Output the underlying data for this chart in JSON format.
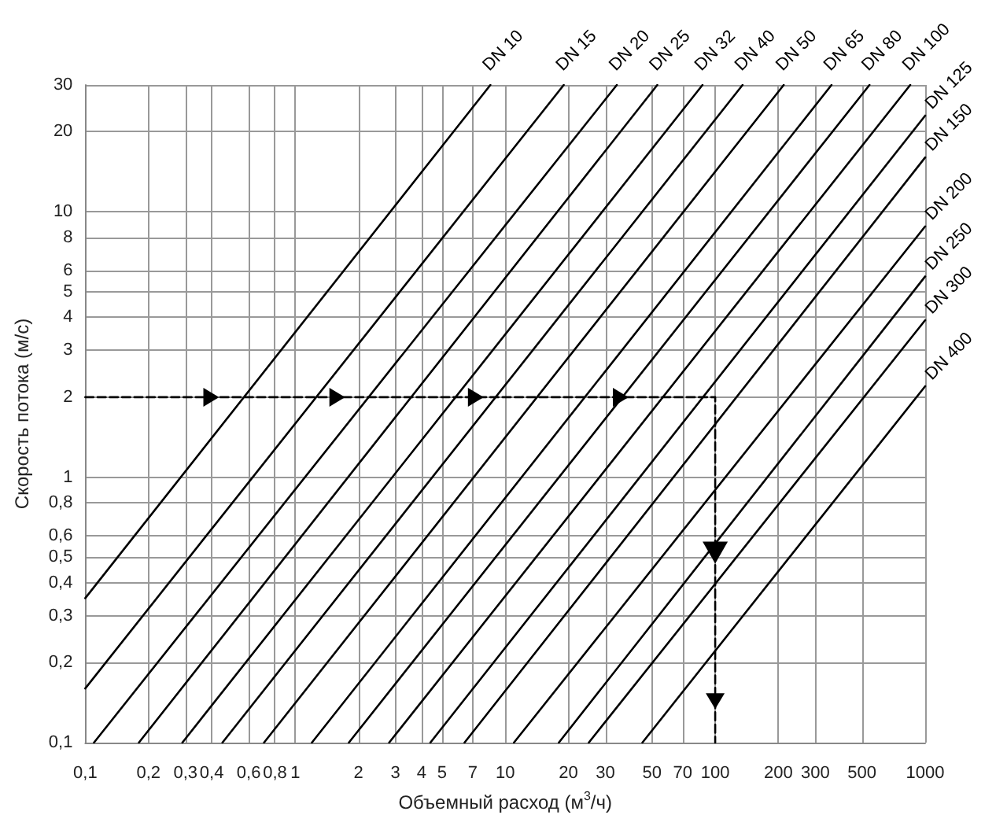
{
  "chart_data": {
    "type": "line",
    "xlabel": "Объемный расход (м$^{3}$/ч)",
    "ylabel": "Скорость потока (м/с)",
    "log": "xy",
    "grid": true,
    "legend": false,
    "marker": "none",
    "line_style": "solid",
    "xlim": [
      0.1,
      1000
    ],
    "ylim": [
      0.1,
      30
    ],
    "xticks": [
      {
        "value": 0.1,
        "label": "0,1"
      },
      {
        "value": 0.2,
        "label": "0,2"
      },
      {
        "value": 0.3,
        "label": "0,3"
      },
      {
        "value": 0.4,
        "label": "0,4"
      },
      {
        "value": 0.6,
        "label": "0,6"
      },
      {
        "value": 0.8,
        "label": "0,8"
      },
      1,
      2,
      3,
      4,
      5,
      7,
      10,
      20,
      30,
      50,
      70,
      100,
      200,
      300,
      500,
      1000
    ],
    "yticks": [
      {
        "value": 0.1,
        "label": "0,1"
      },
      {
        "value": 0.2,
        "label": "0,2"
      },
      {
        "value": 0.3,
        "label": "0,3"
      },
      {
        "value": 0.4,
        "label": "0,4"
      },
      {
        "value": 0.5,
        "label": "0,5"
      },
      {
        "value": 0.6,
        "label": "0,6"
      },
      {
        "value": 0.8,
        "label": "0,8"
      },
      1,
      2,
      3,
      4,
      5,
      6,
      8,
      10,
      20,
      30
    ],
    "series": [
      {
        "name": "DN 10",
        "color": "#000000",
        "x": [
          0.1,
          8.5
        ],
        "values": [
          0.35,
          30
        ]
      },
      {
        "name": "DN 15",
        "color": "#000000",
        "x": [
          0.1,
          19
        ],
        "values": [
          0.16,
          30
        ]
      },
      {
        "name": "DN 20",
        "color": "#000000",
        "x": [
          0.11,
          34
        ],
        "values": [
          0.1,
          30
        ]
      },
      {
        "name": "DN 25",
        "color": "#000000",
        "x": [
          0.18,
          53
        ],
        "values": [
          0.1,
          30
        ]
      },
      {
        "name": "DN 32",
        "color": "#000000",
        "x": [
          0.29,
          87
        ],
        "values": [
          0.1,
          30
        ]
      },
      {
        "name": "DN 40",
        "color": "#000000",
        "x": [
          0.45,
          135
        ],
        "values": [
          0.1,
          30
        ]
      },
      {
        "name": "DN 50",
        "color": "#000000",
        "x": [
          0.71,
          212
        ],
        "values": [
          0.1,
          30
        ]
      },
      {
        "name": "DN 65",
        "color": "#000000",
        "x": [
          1.2,
          358
        ],
        "values": [
          0.1,
          30
        ]
      },
      {
        "name": "DN 80",
        "color": "#000000",
        "x": [
          1.8,
          543
        ],
        "values": [
          0.1,
          30
        ]
      },
      {
        "name": "DN 100",
        "color": "#000000",
        "x": [
          2.8,
          849
        ],
        "values": [
          0.1,
          30
        ]
      },
      {
        "name": "DN 125",
        "color": "#000000",
        "x": [
          4.4,
          1000
        ],
        "values": [
          0.1,
          23
        ]
      },
      {
        "name": "DN 150",
        "color": "#000000",
        "x": [
          6.4,
          1000
        ],
        "values": [
          0.1,
          16
        ]
      },
      {
        "name": "DN 200",
        "color": "#000000",
        "x": [
          11,
          1000
        ],
        "values": [
          0.1,
          8.8
        ]
      },
      {
        "name": "DN 250",
        "color": "#000000",
        "x": [
          18,
          1000
        ],
        "values": [
          0.1,
          5.7
        ]
      },
      {
        "name": "DN 300",
        "color": "#000000",
        "x": [
          25,
          1000
        ],
        "values": [
          0.1,
          3.9
        ]
      },
      {
        "name": "DN 400",
        "color": "#000000",
        "x": [
          45,
          1000
        ],
        "values": [
          0.1,
          2.2
        ]
      },
      {
        "color": "#000000",
        "line_style": "dashed",
        "x": [
          0.1,
          100,
          100
        ],
        "values": [
          2,
          2,
          0.1
        ]
      }
    ]
  }
}
